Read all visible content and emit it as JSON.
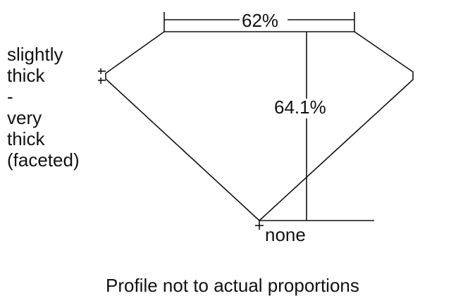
{
  "diagram": {
    "table_percent": "62%",
    "depth_percent": "64.1%",
    "girdle_label": [
      "slightly",
      "thick",
      "-",
      "very",
      "thick",
      "(faceted)"
    ],
    "culet_label": "none",
    "caption": "Profile not to actual proportions",
    "line_color": "#111111"
  }
}
